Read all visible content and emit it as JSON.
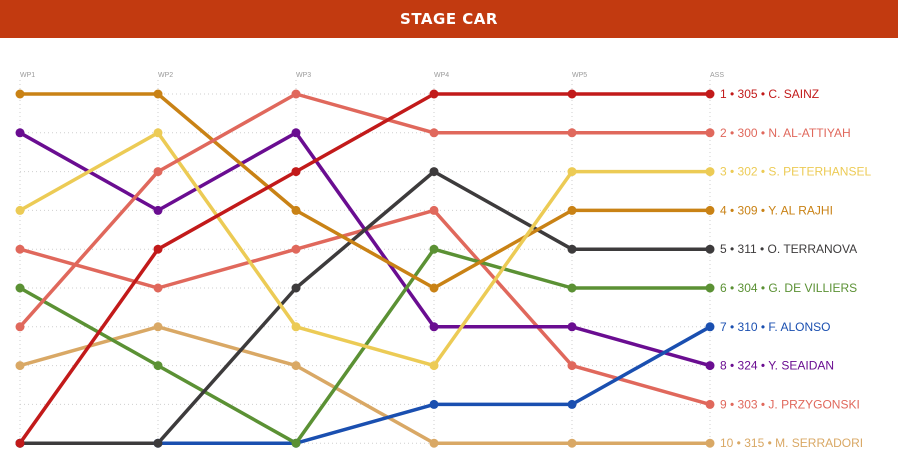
{
  "header": {
    "title": "STAGE CAR"
  },
  "chart_data": {
    "type": "line",
    "title": "STAGE CAR",
    "x": [
      "WP1",
      "WP2",
      "WP3",
      "WP4",
      "WP5",
      "ASS"
    ],
    "ylim": [
      1,
      10
    ],
    "y_inverted": true,
    "grid": true,
    "series": [
      {
        "name": "1 • 305 • C. SAINZ",
        "color": "#c21a1a",
        "values": [
          10,
          5,
          3,
          1,
          1,
          1
        ]
      },
      {
        "name": "2 • 300 • N. AL-ATTIYAH",
        "color": "#e0685c",
        "values": [
          7,
          3,
          1,
          2,
          2,
          2
        ]
      },
      {
        "name": "3 • 302 • S. PETERHANSEL",
        "color": "#eccb55",
        "values": [
          4,
          2,
          7,
          8,
          3,
          3
        ]
      },
      {
        "name": "4 • 309 • Y. AL RAJHI",
        "color": "#c98215",
        "values": [
          1,
          1,
          4,
          6,
          4,
          4
        ]
      },
      {
        "name": "5 • 311 • O. TERRANOVA",
        "color": "#3d3b3c",
        "values": [
          10,
          10,
          6,
          3,
          5,
          5
        ]
      },
      {
        "name": "6 • 304 • G. DE VILLIERS",
        "color": "#5b9134",
        "values": [
          6,
          8,
          10,
          5,
          6,
          6
        ]
      },
      {
        "name": "7 • 310 • F. ALONSO",
        "color": "#1a4fb0",
        "values": [
          10,
          10,
          10,
          9,
          9,
          7
        ]
      },
      {
        "name": "8 • 324 • Y. SEAIDAN",
        "color": "#6a0d91",
        "values": [
          2,
          4,
          2,
          7,
          7,
          8
        ]
      },
      {
        "name": "9 • 303 • J. PRZYGONSKI",
        "color": "#e0685c",
        "values": [
          5,
          6,
          5,
          4,
          8,
          9
        ]
      },
      {
        "name": "10 • 315 • M. SERRADORI",
        "color": "#d9a865",
        "values": [
          8,
          7,
          8,
          10,
          10,
          10
        ]
      }
    ]
  }
}
